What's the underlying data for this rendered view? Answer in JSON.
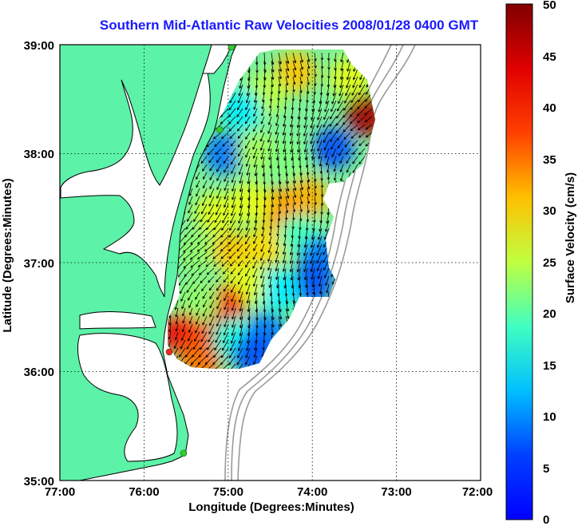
{
  "title": "Southern Mid-Atlantic Raw Velocities 2008/01/28 0400 GMT",
  "map": {
    "xlabel": "Longitude (Degrees:Minutes)",
    "ylabel": "Latitude (Degrees:Minutes)",
    "x_ticks": [
      "77:00",
      "76:00",
      "75:00",
      "74:00",
      "73:00",
      "72:00"
    ],
    "y_ticks": [
      "39:00",
      "38:00",
      "37:00",
      "36:00",
      "35:00"
    ],
    "lon_range": [
      -77,
      -72
    ],
    "lat_range": [
      35,
      39
    ],
    "grid": "dotted",
    "land_color": "#5cf2a8",
    "water_color": "#ffffff",
    "coastline_color": "#000000",
    "bathymetry_color": "#999999"
  },
  "colorbar": {
    "label": "Surface Velocity (cm/s)",
    "ticks": [
      "50",
      "45",
      "40",
      "35",
      "30",
      "25",
      "20",
      "15",
      "10",
      "5",
      "0"
    ],
    "range": [
      0,
      50
    ],
    "colormap": "jet"
  },
  "stations": [
    {
      "lon": -74.96,
      "lat": 38.98,
      "color": "#33cc33"
    },
    {
      "lon": -75.1,
      "lat": 38.22,
      "color": "#33cc33"
    },
    {
      "lon": -75.7,
      "lat": 36.18,
      "color": "#ff2020"
    },
    {
      "lon": -75.53,
      "lat": 35.25,
      "color": "#33cc33"
    }
  ],
  "chart_data": {
    "type": "heatmap",
    "title": "Southern Mid-Atlantic Raw Velocities 2008/01/28 0400 GMT",
    "xlabel": "Longitude (Degrees:Minutes)",
    "ylabel": "Latitude (Degrees:Minutes)",
    "xlim": [
      -77,
      -72
    ],
    "ylim": [
      35,
      39
    ],
    "value_label": "Surface Velocity (cm/s)",
    "value_range": [
      0,
      50
    ],
    "regions": [
      {
        "lon": -73.35,
        "lat": 38.35,
        "speed": 48
      },
      {
        "lon": -73.55,
        "lat": 38.7,
        "speed": 30
      },
      {
        "lon": -73.75,
        "lat": 38.05,
        "speed": 10
      },
      {
        "lon": -74.2,
        "lat": 38.75,
        "speed": 34
      },
      {
        "lon": -74.55,
        "lat": 38.55,
        "speed": 28
      },
      {
        "lon": -74.85,
        "lat": 38.4,
        "speed": 18
      },
      {
        "lon": -75.05,
        "lat": 38.0,
        "speed": 12
      },
      {
        "lon": -74.65,
        "lat": 38.0,
        "speed": 27
      },
      {
        "lon": -74.3,
        "lat": 37.95,
        "speed": 25
      },
      {
        "lon": -74.05,
        "lat": 37.6,
        "speed": 35
      },
      {
        "lon": -74.4,
        "lat": 37.5,
        "speed": 36
      },
      {
        "lon": -74.75,
        "lat": 37.55,
        "speed": 30
      },
      {
        "lon": -75.15,
        "lat": 37.45,
        "speed": 30
      },
      {
        "lon": -75.35,
        "lat": 37.1,
        "speed": 26
      },
      {
        "lon": -74.95,
        "lat": 37.1,
        "speed": 34
      },
      {
        "lon": -74.55,
        "lat": 37.15,
        "speed": 33
      },
      {
        "lon": -74.15,
        "lat": 37.25,
        "speed": 22
      },
      {
        "lon": -73.9,
        "lat": 37.05,
        "speed": 12
      },
      {
        "lon": -74.0,
        "lat": 36.8,
        "speed": 10
      },
      {
        "lon": -74.4,
        "lat": 36.75,
        "speed": 18
      },
      {
        "lon": -74.8,
        "lat": 36.8,
        "speed": 30
      },
      {
        "lon": -75.05,
        "lat": 36.6,
        "speed": 42
      },
      {
        "lon": -75.35,
        "lat": 36.65,
        "speed": 26
      },
      {
        "lon": -75.55,
        "lat": 36.35,
        "speed": 44
      },
      {
        "lon": -75.25,
        "lat": 36.25,
        "speed": 40
      },
      {
        "lon": -74.95,
        "lat": 36.3,
        "speed": 20
      },
      {
        "lon": -74.55,
        "lat": 36.35,
        "speed": 12
      },
      {
        "lon": -74.7,
        "lat": 36.15,
        "speed": 10
      },
      {
        "lon": -75.35,
        "lat": 36.05,
        "speed": 38
      }
    ],
    "vector_density": "dense arrows across the velocity field, mostly pointing south/southwest"
  }
}
